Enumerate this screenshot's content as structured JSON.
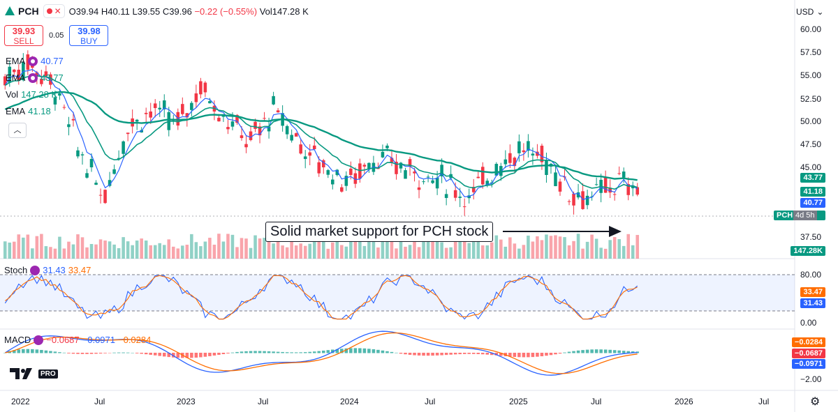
{
  "symbol": {
    "ticker": "PCH",
    "ohlc_open": "O39.94",
    "ohlc_high": "H40.11",
    "ohlc_low": "L39.55",
    "ohlc_close": "C39.96",
    "change": "−0.22 (−0.55%)",
    "volume": "Vol147.28 K",
    "currency": "USD"
  },
  "trade": {
    "sell_price": "39.93",
    "sell_label": "SELL",
    "spread": "0.05",
    "buy_price": "39.98",
    "buy_label": "BUY"
  },
  "indicators": [
    {
      "name": "EMA",
      "value": "40.77",
      "color": "#2962ff"
    },
    {
      "name": "EMA",
      "value": "43.77",
      "color": "#089981"
    },
    {
      "name": "Vol",
      "value": "147.28 K",
      "color": "#089981"
    },
    {
      "name": "EMA",
      "value": "41.18",
      "color": "#089981"
    }
  ],
  "stoch": {
    "name": "Stoch",
    "k": "31.43",
    "d": "33.47",
    "k_color": "#2962ff",
    "d_color": "#ff6d00"
  },
  "macd": {
    "name": "MACD",
    "hist": "−0.0687",
    "macd": "−0.0971",
    "signal": "−0.0284"
  },
  "annotation": "Solid market support for PCH stock",
  "logo": {
    "pro": "PRO"
  },
  "price_axis": [
    "60.00",
    "57.50",
    "55.00",
    "52.50",
    "50.00",
    "47.50",
    "45.00",
    "37.50"
  ],
  "price_tags": [
    {
      "value": "43.77",
      "color": "#089981"
    },
    {
      "value": "41.18",
      "color": "#089981"
    },
    {
      "value": "40.77",
      "color": "#2962ff"
    },
    {
      "value": "147.28K",
      "color": "#089981"
    }
  ],
  "last_tag": {
    "ticker": "PCH",
    "countdown": "4d 5h"
  },
  "stoch_axis": [
    "80.00",
    "0.00"
  ],
  "stoch_tags": [
    {
      "value": "33.47",
      "color": "#ff6d00"
    },
    {
      "value": "31.43",
      "color": "#2962ff"
    }
  ],
  "macd_axis": [
    "−2.00"
  ],
  "macd_tags": [
    {
      "value": "−0.0284",
      "color": "#ff6d00"
    },
    {
      "value": "−0.0687",
      "color": "#f23645"
    },
    {
      "value": "−0.0971",
      "color": "#2962ff"
    }
  ],
  "time_axis": [
    "2022",
    "Jul",
    "2023",
    "Jul",
    "2024",
    "Jul",
    "2025",
    "Jul",
    "2026",
    "Jul"
  ]
}
